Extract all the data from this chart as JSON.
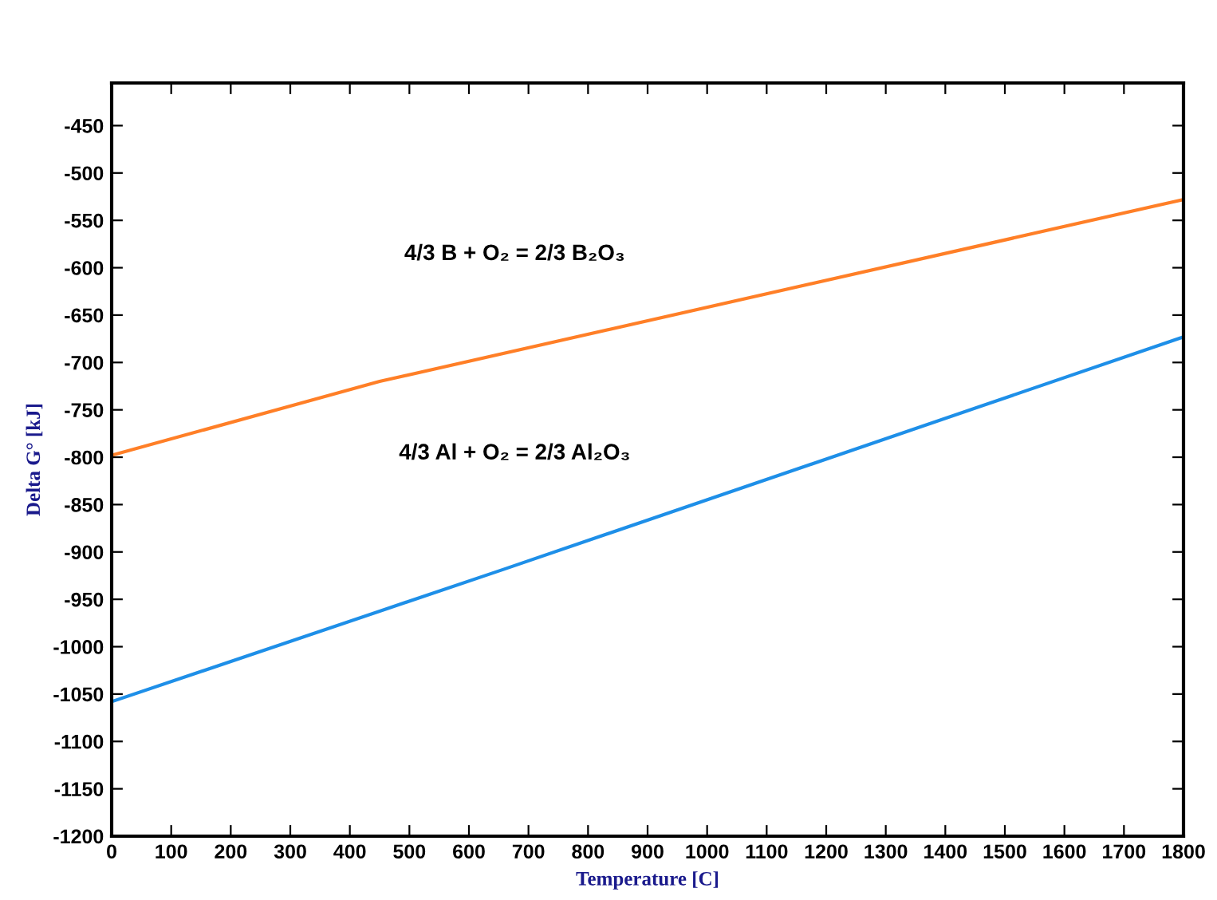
{
  "chart_data": {
    "type": "line",
    "xlabel": "Temperature [C]",
    "ylabel": "Delta G° [kJ]",
    "xlim": [
      0,
      1800
    ],
    "xticks": [
      0,
      100,
      200,
      300,
      400,
      500,
      600,
      700,
      800,
      900,
      1000,
      1100,
      1200,
      1300,
      1400,
      1500,
      1600,
      1700,
      1800
    ],
    "ylim": [
      -1200,
      -405
    ],
    "yticks": [
      -1200,
      -1150,
      -1100,
      -1050,
      -1000,
      -950,
      -900,
      -850,
      -800,
      -750,
      -700,
      -650,
      -600,
      -550,
      -500,
      -450
    ],
    "grid": false,
    "legend": false,
    "series": [
      {
        "name": "4/3 B + O₂ = 2/3 B₂O₃",
        "color": "#ff7f27",
        "x": [
          0,
          450,
          1800
        ],
        "values": [
          -798,
          -720,
          -528
        ]
      },
      {
        "name": "4/3 Al + O₂ = 2/3 Al₂O₃",
        "color": "#1e8fe8",
        "x": [
          0,
          660,
          1800
        ],
        "values": [
          -1058,
          -918,
          -673
        ]
      }
    ]
  }
}
